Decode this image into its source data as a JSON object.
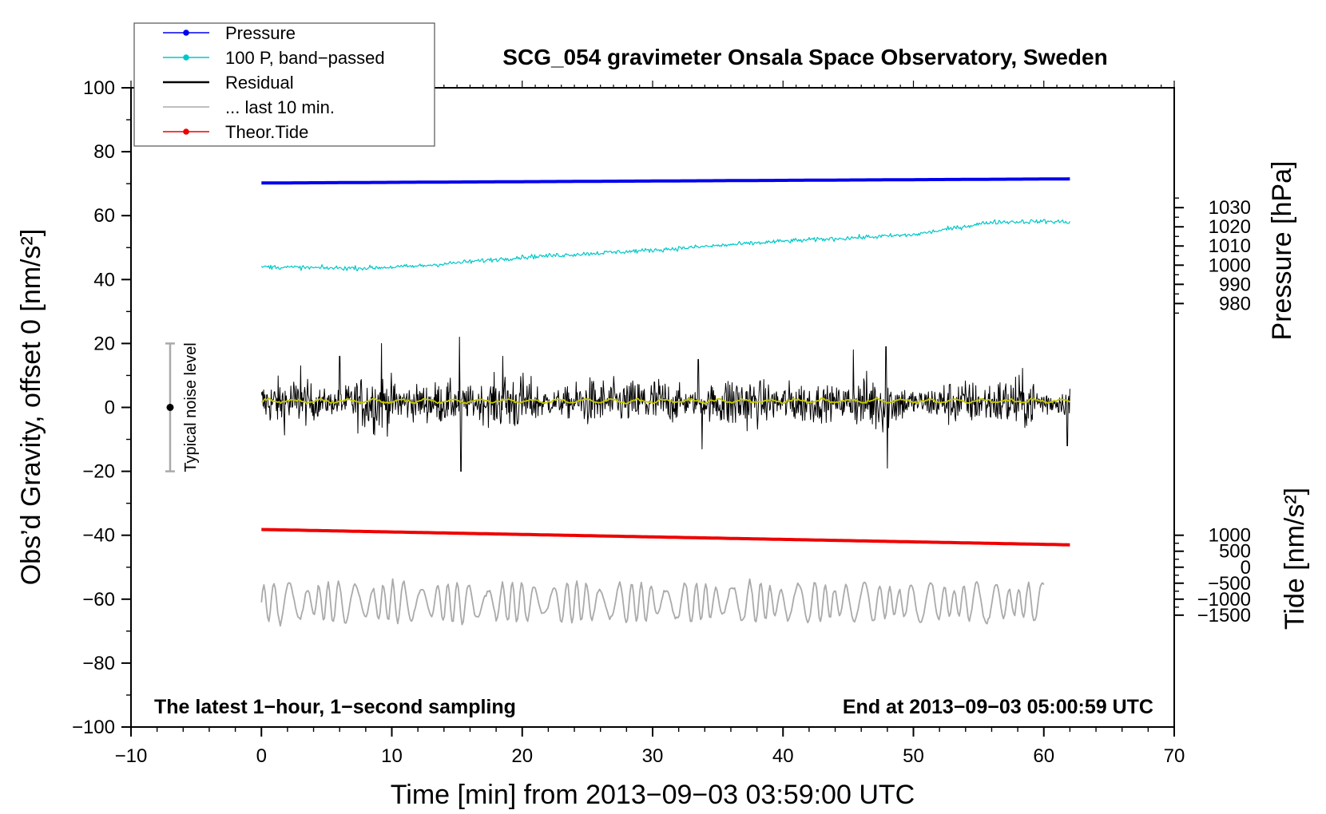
{
  "chart_data": {
    "type": "line",
    "title": "SCG_054 gravimeter Onsala Space Observatory, Sweden",
    "xlabel": "Time [min] from 2013−09−03 03:59:00 UTC",
    "ylabel_left": "Obs’d Gravity, offset 0 [nm/s²]",
    "ylabel_right_top": "Pressure [hPa]",
    "ylabel_right_bottom": "Tide [nm/s²]",
    "xlim": [
      -10,
      70
    ],
    "ylim": [
      -100,
      100
    ],
    "x_ticks": [
      "−10",
      "0",
      "10",
      "20",
      "30",
      "40",
      "50",
      "60",
      "70"
    ],
    "x_tick_values": [
      -10,
      0,
      10,
      20,
      30,
      40,
      50,
      60,
      70
    ],
    "y_ticks": [
      "100",
      "80",
      "60",
      "40",
      "20",
      "0",
      "−20",
      "−40",
      "−60",
      "−80",
      "−100"
    ],
    "y_tick_values": [
      100,
      80,
      60,
      40,
      20,
      0,
      -20,
      -40,
      -60,
      -80,
      -100
    ],
    "pressure_axis": {
      "ticks": [
        "1030",
        "1020",
        "1010",
        "1000",
        "990",
        "980"
      ],
      "values": [
        1030,
        1020,
        1010,
        1000,
        990,
        980
      ],
      "gravity_at_1000": 44.5,
      "gravity_per_hpa": 0.6
    },
    "tide_axis": {
      "ticks": [
        "1000",
        "500",
        "0",
        "−500",
        "−1000",
        "−1500"
      ],
      "values": [
        1000,
        500,
        0,
        -500,
        -1000,
        -1500
      ],
      "gravity_at_zero": -50.0,
      "gravity_per_unit": 0.01
    },
    "series": [
      {
        "name": "Pressure",
        "color": "#0000ee",
        "kind": "linear",
        "x": [
          0,
          62
        ],
        "y": [
          70.2,
          71.5
        ]
      },
      {
        "name": "100 P, band−passed",
        "color": "#00c8c8",
        "kind": "smooth_noisy",
        "x": [
          0,
          5,
          8,
          12,
          20,
          30,
          40,
          45,
          50,
          53,
          56,
          60,
          62
        ],
        "y": [
          44.0,
          43.6,
          43.6,
          44.2,
          47.0,
          49.2,
          52.0,
          53.0,
          54.0,
          56.0,
          58.0,
          58.2,
          58.0
        ],
        "noise": 0.35
      },
      {
        "name": "Residual",
        "color": "#000000",
        "kind": "noise",
        "x_range": [
          0,
          62
        ],
        "center": 1.5,
        "amplitude": 8,
        "spikes": [
          [
            3,
            13
          ],
          [
            6,
            16
          ],
          [
            9.2,
            20
          ],
          [
            15.2,
            22
          ],
          [
            15.3,
            -20
          ],
          [
            18.5,
            16
          ],
          [
            33.5,
            15
          ],
          [
            33.8,
            -13
          ],
          [
            45.4,
            18
          ],
          [
            47.9,
            19
          ],
          [
            48.0,
            -19
          ],
          [
            61.8,
            -12
          ]
        ]
      },
      {
        "name": "... last 10 min.",
        "color": "#aaaaaa",
        "kind": "oscillation",
        "x_range": [
          0,
          60
        ],
        "center": -61,
        "amplitude": 6.5
      },
      {
        "name": "Theor.Tide",
        "color": "#ee0000",
        "kind": "linear",
        "x": [
          0,
          62
        ],
        "y": [
          -38.2,
          -43.0
        ]
      },
      {
        "name": "Residual mean",
        "color": "#c8c800",
        "kind": "wobble",
        "x_range": [
          0,
          62
        ],
        "center": 2.0,
        "amplitude": 0.5
      }
    ],
    "legend": {
      "position": "top-left",
      "entries": [
        {
          "label": "Pressure",
          "color": "#0000ee",
          "marker": true
        },
        {
          "label": "100 P, band−passed",
          "color": "#00c8c8",
          "marker": true
        },
        {
          "label": "Residual",
          "color": "#000000",
          "marker": false
        },
        {
          "label": "... last 10 min.",
          "color": "#aaaaaa",
          "marker": false
        },
        {
          "label": "Theor.Tide",
          "color": "#ee0000",
          "marker": true
        }
      ]
    },
    "noise_bar": {
      "label": "Typical noise level",
      "x": -7,
      "y_center": 0,
      "y_range": [
        -20,
        20
      ]
    },
    "annotations": {
      "bottom_left": "The latest 1−hour, 1−second sampling",
      "bottom_right": "End at 2013−09−03 05:00:59 UTC"
    }
  }
}
